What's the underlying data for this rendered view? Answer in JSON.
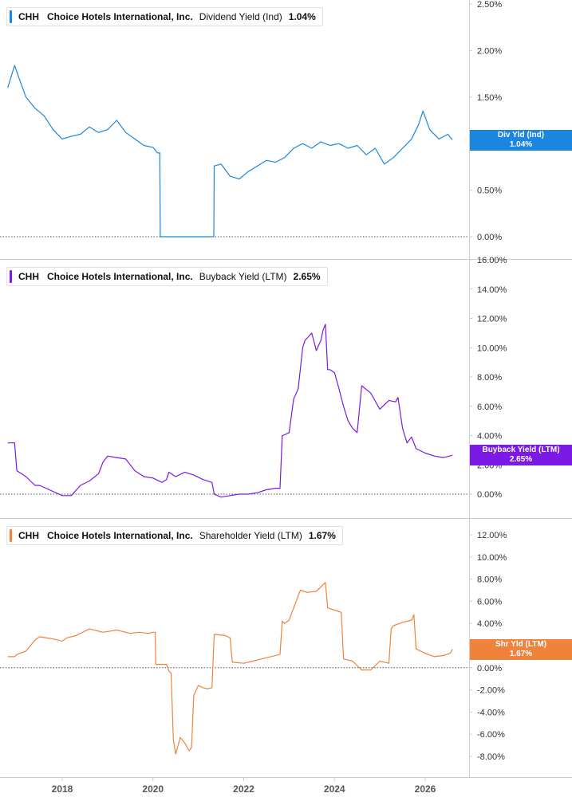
{
  "colors": {
    "dividend": "#1a86e0",
    "buyback": "#7b19e6",
    "shareholder": "#f0823c",
    "axis": "#cccccc",
    "tick_text": "#333333",
    "zero_line": "#555555"
  },
  "x_axis": {
    "ticks": [
      "2018",
      "2020",
      "2022",
      "2024",
      "2026"
    ]
  },
  "panels": [
    {
      "key": "dividend",
      "legend": {
        "ticker": "CHH",
        "company": "Choice Hotels International, Inc.",
        "metric": "Dividend Yield (Ind)",
        "value": "1.04%"
      },
      "tag": {
        "label": "Div Yld (Ind)",
        "value": "1.04%"
      },
      "y_ticks": [
        "2.50%",
        "2.00%",
        "1.50%",
        "1.00%",
        "0.50%",
        "0.00%"
      ]
    },
    {
      "key": "buyback",
      "legend": {
        "ticker": "CHH",
        "company": "Choice Hotels International, Inc.",
        "metric": "Buyback Yield (LTM)",
        "value": "2.65%"
      },
      "tag": {
        "label": "Buyback Yield (LTM)",
        "value": "2.65%"
      },
      "y_ticks": [
        "16.00%",
        "14.00%",
        "12.00%",
        "10.00%",
        "8.00%",
        "6.00%",
        "4.00%",
        "2.00%",
        "0.00%"
      ]
    },
    {
      "key": "shareholder",
      "legend": {
        "ticker": "CHH",
        "company": "Choice Hotels International, Inc.",
        "metric": "Shareholder Yield (LTM)",
        "value": "1.67%"
      },
      "tag": {
        "label": "Shr Yld (LTM)",
        "value": "1.67%"
      },
      "y_ticks": [
        "12.00%",
        "10.00%",
        "8.00%",
        "6.00%",
        "4.00%",
        "2.00%",
        "0.00%",
        "-2.00%",
        "-4.00%",
        "-6.00%",
        "-8.00%"
      ]
    }
  ],
  "chart_data": [
    {
      "type": "line",
      "title": "",
      "series": [
        {
          "name": "Dividend Yield (Ind)",
          "x": [
            2016.8,
            2016.95,
            2017.05,
            2017.2,
            2017.4,
            2017.6,
            2017.8,
            2018.0,
            2018.2,
            2018.4,
            2018.6,
            2018.8,
            2019.0,
            2019.2,
            2019.4,
            2019.6,
            2019.8,
            2020.0,
            2020.1,
            2020.15,
            2020.16,
            2020.5,
            2021.0,
            2021.3,
            2021.34,
            2021.35,
            2021.5,
            2021.7,
            2021.9,
            2022.1,
            2022.3,
            2022.5,
            2022.7,
            2022.9,
            2023.1,
            2023.3,
            2023.5,
            2023.7,
            2023.9,
            2024.1,
            2024.3,
            2024.5,
            2024.7,
            2024.9,
            2025.1,
            2025.3,
            2025.5,
            2025.7,
            2025.85,
            2025.95,
            2026.1,
            2026.3,
            2026.5,
            2026.6
          ],
          "y": [
            1.6,
            1.84,
            1.7,
            1.5,
            1.38,
            1.3,
            1.15,
            1.05,
            1.08,
            1.1,
            1.18,
            1.12,
            1.15,
            1.25,
            1.12,
            1.05,
            0.98,
            0.96,
            0.9,
            0.9,
            0.0,
            0.0,
            0.0,
            0.0,
            0.0,
            0.76,
            0.78,
            0.65,
            0.62,
            0.7,
            0.76,
            0.82,
            0.8,
            0.85,
            0.95,
            1.0,
            0.95,
            1.02,
            0.98,
            1.0,
            0.95,
            0.98,
            0.88,
            0.95,
            0.78,
            0.85,
            0.95,
            1.05,
            1.2,
            1.35,
            1.15,
            1.05,
            1.1,
            1.04
          ]
        }
      ],
      "ylim": [
        0,
        2.5
      ]
    },
    {
      "type": "line",
      "title": "",
      "series": [
        {
          "name": "Buyback Yield (LTM)",
          "x": [
            2016.8,
            2016.95,
            2017.0,
            2017.2,
            2017.4,
            2017.5,
            2018.0,
            2018.2,
            2018.4,
            2018.6,
            2018.8,
            2018.9,
            2019.0,
            2019.2,
            2019.4,
            2019.6,
            2019.8,
            2020.0,
            2020.2,
            2020.3,
            2020.35,
            2020.5,
            2020.7,
            2020.9,
            2021.1,
            2021.3,
            2021.35,
            2021.5,
            2021.7,
            2021.9,
            2022.1,
            2022.3,
            2022.5,
            2022.7,
            2022.8,
            2022.85,
            2022.86,
            2023.0,
            2023.1,
            2023.2,
            2023.3,
            2023.35,
            2023.5,
            2023.6,
            2023.7,
            2023.75,
            2023.8,
            2023.85,
            2023.9,
            2024.0,
            2024.1,
            2024.2,
            2024.3,
            2024.4,
            2024.5,
            2024.6,
            2024.8,
            2025.0,
            2025.2,
            2025.35,
            2025.4,
            2025.5,
            2025.6,
            2025.7,
            2025.8,
            2026.0,
            2026.2,
            2026.4,
            2026.6
          ],
          "y": [
            3.5,
            3.5,
            1.6,
            1.2,
            0.6,
            0.6,
            -0.1,
            -0.1,
            0.6,
            0.9,
            1.4,
            2.2,
            2.6,
            2.5,
            2.4,
            1.6,
            1.2,
            1.1,
            0.8,
            1.0,
            1.5,
            1.2,
            1.5,
            1.3,
            1.0,
            0.8,
            0.0,
            -0.2,
            -0.1,
            0.0,
            0.0,
            0.1,
            0.3,
            0.4,
            0.4,
            4.0,
            4.0,
            4.2,
            6.5,
            7.2,
            10.0,
            10.5,
            11.0,
            9.8,
            10.5,
            11.2,
            11.6,
            8.5,
            8.5,
            8.3,
            7.2,
            6.0,
            5.0,
            4.5,
            4.2,
            7.4,
            6.9,
            5.8,
            6.4,
            6.3,
            6.6,
            4.5,
            3.5,
            3.9,
            3.1,
            2.8,
            2.6,
            2.5,
            2.65
          ]
        }
      ],
      "ylim": [
        0,
        16
      ]
    },
    {
      "type": "line",
      "title": "",
      "series": [
        {
          "name": "Shareholder Yield (LTM)",
          "x": [
            2016.8,
            2016.95,
            2017.0,
            2017.2,
            2017.4,
            2017.5,
            2017.8,
            2018.0,
            2018.1,
            2018.3,
            2018.6,
            2018.9,
            2019.2,
            2019.5,
            2019.7,
            2019.9,
            2020.0,
            2020.05,
            2020.06,
            2020.3,
            2020.35,
            2020.4,
            2020.45,
            2020.5,
            2020.6,
            2020.7,
            2020.8,
            2020.85,
            2020.9,
            2021.0,
            2021.1,
            2021.2,
            2021.3,
            2021.35,
            2021.4,
            2021.6,
            2021.7,
            2021.75,
            2022.0,
            2022.2,
            2022.4,
            2022.6,
            2022.8,
            2022.85,
            2022.9,
            2023.0,
            2023.2,
            2023.25,
            2023.4,
            2023.6,
            2023.8,
            2023.85,
            2024.0,
            2024.15,
            2024.2,
            2024.4,
            2024.6,
            2024.8,
            2025.0,
            2025.2,
            2025.25,
            2025.3,
            2025.5,
            2025.7,
            2025.75,
            2025.8,
            2025.85,
            2026.0,
            2026.2,
            2026.4,
            2026.55,
            2026.6
          ],
          "y": [
            1.0,
            1.0,
            1.2,
            1.5,
            2.5,
            2.8,
            2.6,
            2.4,
            2.7,
            2.9,
            3.5,
            3.2,
            3.4,
            3.1,
            3.2,
            3.1,
            3.2,
            3.2,
            0.3,
            0.3,
            -0.3,
            -0.5,
            -6.5,
            -7.8,
            -6.3,
            -6.8,
            -7.5,
            -7.2,
            -2.5,
            -1.6,
            -1.8,
            -1.9,
            -1.8,
            3.0,
            3.0,
            2.9,
            2.7,
            0.5,
            0.4,
            0.6,
            0.8,
            1.0,
            1.2,
            4.2,
            4.0,
            4.3,
            6.5,
            7.0,
            6.8,
            6.9,
            7.7,
            5.4,
            5.2,
            5.0,
            0.8,
            0.6,
            -0.2,
            -0.2,
            0.6,
            0.4,
            3.5,
            3.8,
            4.1,
            4.3,
            4.8,
            1.7,
            1.6,
            1.3,
            1.0,
            1.1,
            1.3,
            1.67
          ]
        }
      ],
      "ylim": [
        -8,
        12
      ]
    }
  ]
}
